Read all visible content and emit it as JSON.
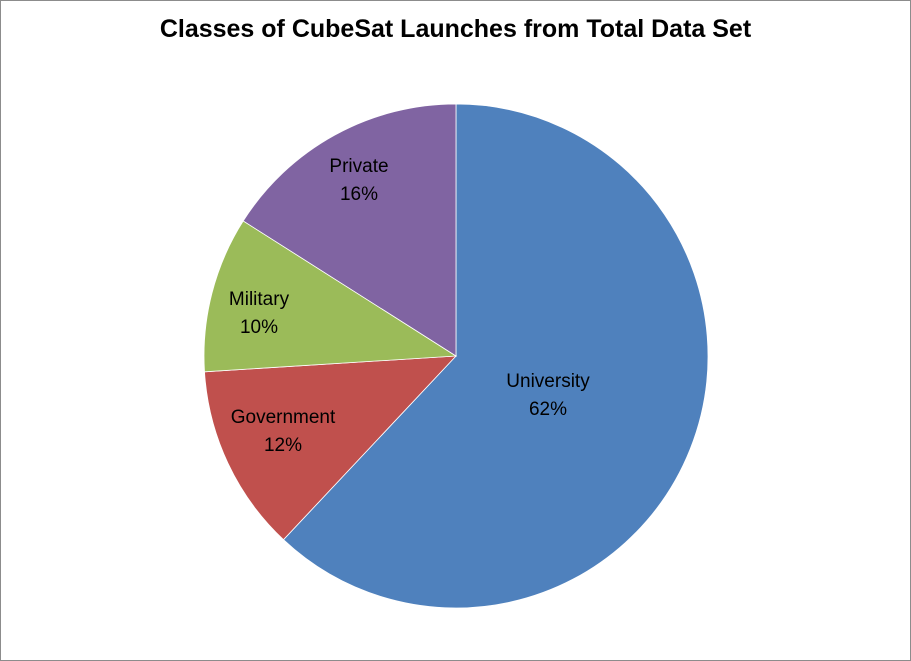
{
  "chart_data": {
    "type": "pie",
    "title": "Classes of CubeSat Launches from Total Data Set",
    "slices": [
      {
        "label": "University",
        "percent_label": "62%",
        "value": 62,
        "color": "#4F81BD"
      },
      {
        "label": "Government",
        "percent_label": "12%",
        "value": 12,
        "color": "#C0504D"
      },
      {
        "label": "Military",
        "percent_label": "10%",
        "value": 10,
        "color": "#9BBB59"
      },
      {
        "label": "Private",
        "percent_label": "16%",
        "value": 16,
        "color": "#8064A2"
      }
    ],
    "start_angle": "12 o'clock, clockwise"
  }
}
